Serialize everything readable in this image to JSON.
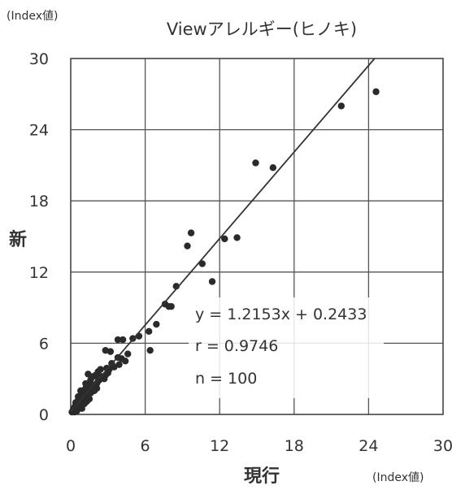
{
  "chart_data": {
    "type": "scatter",
    "title": "Viewアレルギー(ヒノキ)",
    "xlabel": "現行",
    "ylabel": "新",
    "x_unit": "(Index値)",
    "y_unit": "(Index値)",
    "xlim": [
      0,
      30
    ],
    "ylim": [
      0,
      30
    ],
    "xticks": [
      "0",
      "6",
      "12",
      "18",
      "24",
      "30"
    ],
    "yticks": [
      "0",
      "6",
      "12",
      "18",
      "24",
      "30"
    ],
    "grid": true,
    "point_color": "#2a2a2a",
    "regression": {
      "slope": 1.2153,
      "intercept": 0.2433,
      "color": "#333333"
    },
    "stats": [
      "y = 1.2153x + 0.2433",
      "r = 0.9746",
      "n = 100"
    ],
    "points": [
      [
        24.6,
        27.2
      ],
      [
        21.8,
        26.0
      ],
      [
        14.9,
        21.2
      ],
      [
        16.3,
        20.8
      ],
      [
        9.7,
        15.3
      ],
      [
        9.4,
        14.2
      ],
      [
        12.4,
        14.8
      ],
      [
        13.4,
        14.9
      ],
      [
        10.6,
        12.7
      ],
      [
        11.4,
        11.2
      ],
      [
        8.5,
        10.8
      ],
      [
        7.6,
        9.3
      ],
      [
        7.9,
        9.1
      ],
      [
        8.1,
        9.1
      ],
      [
        6.9,
        7.6
      ],
      [
        6.3,
        7.0
      ],
      [
        6.4,
        5.4
      ],
      [
        5.5,
        6.6
      ],
      [
        5.0,
        6.4
      ],
      [
        4.2,
        6.3
      ],
      [
        3.8,
        6.3
      ],
      [
        3.2,
        5.3
      ],
      [
        2.8,
        5.4
      ],
      [
        4.4,
        4.5
      ],
      [
        3.8,
        4.8
      ],
      [
        3.3,
        4.3
      ],
      [
        2.9,
        3.9
      ],
      [
        2.4,
        3.8
      ],
      [
        2.2,
        3.6
      ],
      [
        2.0,
        3.3
      ],
      [
        1.8,
        3.2
      ],
      [
        1.6,
        2.9
      ],
      [
        1.4,
        3.4
      ],
      [
        1.5,
        2.6
      ],
      [
        1.3,
        2.4
      ],
      [
        1.2,
        2.2
      ],
      [
        1.0,
        2.0
      ],
      [
        0.9,
        1.8
      ],
      [
        0.8,
        1.6
      ],
      [
        0.7,
        1.4
      ],
      [
        0.6,
        1.2
      ],
      [
        0.5,
        1.0
      ],
      [
        0.4,
        0.8
      ],
      [
        0.3,
        0.6
      ],
      [
        0.2,
        0.4
      ],
      [
        0.1,
        0.2
      ],
      [
        1.1,
        1.5
      ],
      [
        1.3,
        1.7
      ],
      [
        1.5,
        1.9
      ],
      [
        1.7,
        2.1
      ],
      [
        1.9,
        2.3
      ],
      [
        2.1,
        2.6
      ],
      [
        2.3,
        2.9
      ],
      [
        2.6,
        3.1
      ],
      [
        2.7,
        3.0
      ],
      [
        3.0,
        3.5
      ],
      [
        3.5,
        4.0
      ],
      [
        3.9,
        4.2
      ],
      [
        4.1,
        4.7
      ],
      [
        4.6,
        5.1
      ],
      [
        0.9,
        1.1
      ],
      [
        0.7,
        1.0
      ],
      [
        0.5,
        0.6
      ],
      [
        0.3,
        0.4
      ],
      [
        0.6,
        0.9
      ],
      [
        0.8,
        1.2
      ],
      [
        1.0,
        1.3
      ],
      [
        1.2,
        1.6
      ],
      [
        0.4,
        0.5
      ],
      [
        0.2,
        0.3
      ],
      [
        0.9,
        0.8
      ],
      [
        1.1,
        1.1
      ],
      [
        1.4,
        1.8
      ],
      [
        1.6,
        2.2
      ],
      [
        1.8,
        2.4
      ],
      [
        2.0,
        2.5
      ],
      [
        2.2,
        2.8
      ],
      [
        2.5,
        3.2
      ],
      [
        2.8,
        3.3
      ],
      [
        3.1,
        3.8
      ],
      [
        0.6,
        0.7
      ],
      [
        0.8,
        0.9
      ],
      [
        1.0,
        1.4
      ],
      [
        1.2,
        1.3
      ],
      [
        1.4,
        1.5
      ],
      [
        1.6,
        1.8
      ],
      [
        1.9,
        2.0
      ],
      [
        2.1,
        2.2
      ],
      [
        0.3,
        0.2
      ],
      [
        0.5,
        0.3
      ],
      [
        0.7,
        0.6
      ],
      [
        0.9,
        0.5
      ],
      [
        1.1,
        0.9
      ],
      [
        1.3,
        1.1
      ],
      [
        1.5,
        1.3
      ],
      [
        0.4,
        1.0
      ],
      [
        0.6,
        1.5
      ],
      [
        0.8,
        2.0
      ],
      [
        1.0,
        1.7
      ],
      [
        1.2,
        2.6
      ]
    ]
  }
}
